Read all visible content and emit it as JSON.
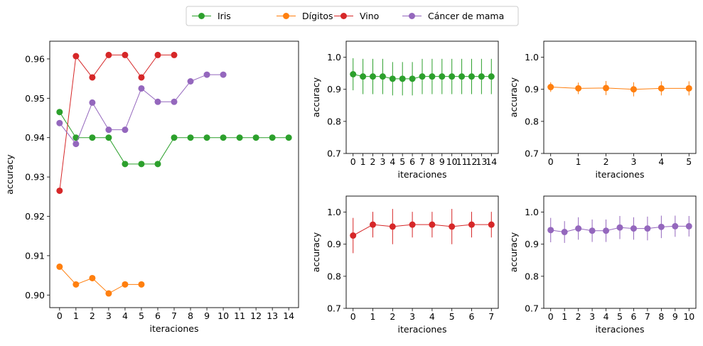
{
  "legend": {
    "placement": "top-center",
    "entries": [
      {
        "label": "Iris",
        "color": "#2ca02c"
      },
      {
        "label": "Dígitos",
        "color": "#ff7f0e"
      },
      {
        "label": "Vino",
        "color": "#d62728"
      },
      {
        "label": "Cáncer de mama",
        "color": "#9467bd"
      }
    ]
  },
  "chart_data": [
    {
      "id": "main",
      "type": "line",
      "xlabel": "iteraciones",
      "ylabel": "accuracy",
      "xlim": [
        -0.6,
        14.6
      ],
      "ylim": [
        0.8968,
        0.9645
      ],
      "xticks": [
        0,
        1,
        2,
        3,
        4,
        5,
        6,
        7,
        8,
        9,
        10,
        11,
        12,
        13,
        14
      ],
      "yticks": [
        0.9,
        0.91,
        0.92,
        0.93,
        0.94,
        0.95,
        0.96
      ],
      "ytick_labels": [
        "0.90",
        "0.91",
        "0.92",
        "0.93",
        "0.94",
        "0.95",
        "0.96"
      ],
      "series": [
        {
          "name": "Iris",
          "color": "#2ca02c",
          "x": [
            0,
            1,
            2,
            3,
            4,
            5,
            6,
            7,
            8,
            9,
            10,
            11,
            12,
            13,
            14
          ],
          "y": [
            0.9465,
            0.94,
            0.94,
            0.94,
            0.9333,
            0.9333,
            0.9333,
            0.94,
            0.94,
            0.94,
            0.94,
            0.94,
            0.94,
            0.94,
            0.94
          ]
        },
        {
          "name": "Dígitos",
          "color": "#ff7f0e",
          "x": [
            0,
            1,
            2,
            3,
            4,
            5
          ],
          "y": [
            0.9072,
            0.9027,
            0.9043,
            0.9004,
            0.9027,
            0.9027
          ]
        },
        {
          "name": "Vino",
          "color": "#d62728",
          "x": [
            0,
            1,
            2,
            3,
            4,
            5,
            6,
            7
          ],
          "y": [
            0.9265,
            0.9607,
            0.9553,
            0.961,
            0.961,
            0.9553,
            0.961,
            0.961
          ]
        },
        {
          "name": "Cáncer de mama",
          "color": "#9467bd",
          "x": [
            0,
            1,
            2,
            3,
            4,
            5,
            6,
            7,
            8,
            9,
            10
          ],
          "y": [
            0.9437,
            0.9384,
            0.9489,
            0.942,
            0.942,
            0.9525,
            0.9491,
            0.9491,
            0.9543,
            0.956,
            0.956
          ]
        }
      ]
    },
    {
      "id": "iris",
      "type": "line",
      "xlabel": "iteraciones",
      "ylabel": "accuracy",
      "xlim": [
        -0.7,
        14.7
      ],
      "ylim": [
        0.7,
        1.05
      ],
      "xticks": [
        0,
        1,
        2,
        3,
        4,
        5,
        6,
        7,
        8,
        9,
        10,
        11,
        12,
        13,
        14
      ],
      "yticks": [
        0.7,
        0.8,
        0.9,
        1.0
      ],
      "ytick_labels": [
        "0.7",
        "0.8",
        "0.9",
        "1.0"
      ],
      "series": [
        {
          "color": "#2ca02c",
          "x": [
            0,
            1,
            2,
            3,
            4,
            5,
            6,
            7,
            8,
            9,
            10,
            11,
            12,
            13,
            14
          ],
          "y": [
            0.947,
            0.94,
            0.94,
            0.94,
            0.933,
            0.933,
            0.933,
            0.94,
            0.94,
            0.94,
            0.94,
            0.94,
            0.94,
            0.94,
            0.94
          ],
          "err": [
            0.05,
            0.055,
            0.055,
            0.055,
            0.052,
            0.052,
            0.052,
            0.055,
            0.055,
            0.055,
            0.055,
            0.055,
            0.055,
            0.055,
            0.055
          ]
        }
      ]
    },
    {
      "id": "digitos",
      "type": "line",
      "xlabel": "iteraciones",
      "ylabel": "accuracy",
      "xlim": [
        -0.25,
        5.25
      ],
      "ylim": [
        0.7,
        1.05
      ],
      "xticks": [
        0,
        1,
        2,
        3,
        4,
        5
      ],
      "yticks": [
        0.7,
        0.8,
        0.9,
        1.0
      ],
      "ytick_labels": [
        "0.7",
        "0.8",
        "0.9",
        "1.0"
      ],
      "series": [
        {
          "color": "#ff7f0e",
          "x": [
            0,
            1,
            2,
            3,
            4,
            5
          ],
          "y": [
            0.907,
            0.903,
            0.904,
            0.9,
            0.903,
            0.903
          ],
          "err": [
            0.015,
            0.018,
            0.022,
            0.022,
            0.022,
            0.022
          ]
        }
      ]
    },
    {
      "id": "vino",
      "type": "line",
      "xlabel": "iteraciones",
      "ylabel": "accuracy",
      "xlim": [
        -0.35,
        7.35
      ],
      "ylim": [
        0.7,
        1.05
      ],
      "xticks": [
        0,
        1,
        2,
        3,
        4,
        5,
        6,
        7
      ],
      "yticks": [
        0.7,
        0.8,
        0.9,
        1.0
      ],
      "ytick_labels": [
        "0.7",
        "0.8",
        "0.9",
        "1.0"
      ],
      "series": [
        {
          "color": "#d62728",
          "x": [
            0,
            1,
            2,
            3,
            4,
            5,
            6,
            7
          ],
          "y": [
            0.927,
            0.961,
            0.955,
            0.961,
            0.961,
            0.955,
            0.961,
            0.961
          ],
          "err": [
            0.055,
            0.04,
            0.055,
            0.04,
            0.04,
            0.055,
            0.04,
            0.04
          ]
        }
      ]
    },
    {
      "id": "cancer",
      "type": "line",
      "xlabel": "iteraciones",
      "ylabel": "accuracy",
      "xlim": [
        -0.5,
        10.5
      ],
      "ylim": [
        0.7,
        1.05
      ],
      "xticks": [
        0,
        1,
        2,
        3,
        4,
        5,
        6,
        7,
        8,
        9,
        10
      ],
      "yticks": [
        0.7,
        0.8,
        0.9,
        1.0
      ],
      "ytick_labels": [
        "0.7",
        "0.8",
        "0.9",
        "1.0"
      ],
      "series": [
        {
          "color": "#9467bd",
          "x": [
            0,
            1,
            2,
            3,
            4,
            5,
            6,
            7,
            8,
            9,
            10
          ],
          "y": [
            0.944,
            0.938,
            0.949,
            0.942,
            0.942,
            0.952,
            0.949,
            0.949,
            0.954,
            0.956,
            0.956
          ],
          "err": [
            0.038,
            0.034,
            0.035,
            0.035,
            0.035,
            0.036,
            0.035,
            0.037,
            0.035,
            0.033,
            0.032
          ]
        }
      ]
    }
  ]
}
